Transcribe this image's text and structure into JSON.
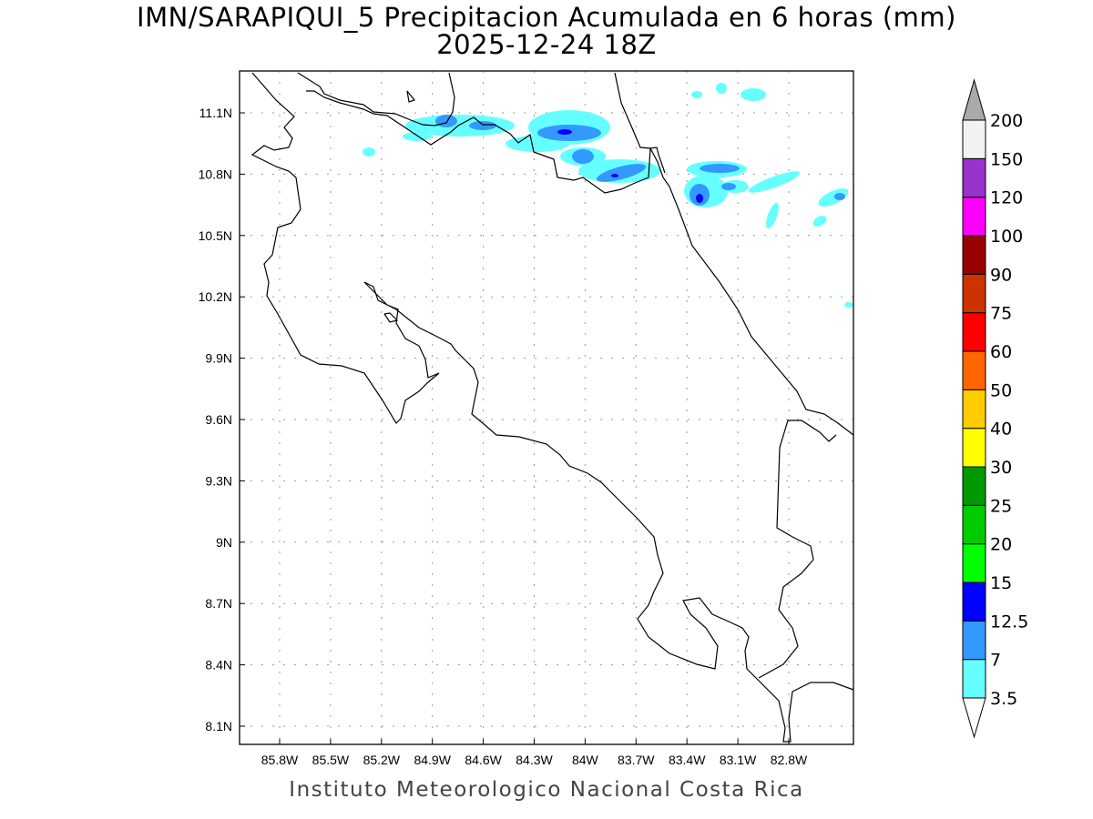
{
  "title": {
    "line1": "IMN/SARAPIQUI_5 Precipitacion Acumulada en 6 horas (mm)",
    "line2": "2025-12-24 18Z"
  },
  "footer": "Instituto Meteorologico Nacional Costa Rica",
  "map": {
    "lon_ticks": [
      "85.8W",
      "85.5W",
      "85.2W",
      "84.9W",
      "84.6W",
      "84.3W",
      "84W",
      "83.7W",
      "83.4W",
      "83.1W",
      "82.8W"
    ],
    "lon_values": [
      85.8,
      85.5,
      85.2,
      84.9,
      84.6,
      84.3,
      84.0,
      83.7,
      83.4,
      83.1,
      82.8
    ],
    "lat_ticks": [
      "11.1N",
      "10.8N",
      "10.5N",
      "10.2N",
      "9.9N",
      "9.6N",
      "9.3N",
      "9N",
      "8.7N",
      "8.4N",
      "8.1N"
    ],
    "lat_values": [
      11.1,
      10.8,
      10.5,
      10.2,
      9.9,
      9.6,
      9.3,
      9.0,
      8.7,
      8.4,
      8.1
    ]
  },
  "colorbar": {
    "levels": [
      "3.5",
      "7",
      "12.5",
      "15",
      "20",
      "25",
      "30",
      "40",
      "50",
      "60",
      "75",
      "90",
      "100",
      "120",
      "150",
      "200"
    ],
    "colors": [
      "#66ffff",
      "#3399ff",
      "#0000ff",
      "#00ff00",
      "#00cc00",
      "#009900",
      "#ffff00",
      "#ffcc00",
      "#ff6600",
      "#ff0000",
      "#cc3300",
      "#990000",
      "#ff00ff",
      "#9933cc",
      "#f2f2f2"
    ],
    "over_color": "#aaaaaa",
    "under_color": "#ffffff"
  }
}
